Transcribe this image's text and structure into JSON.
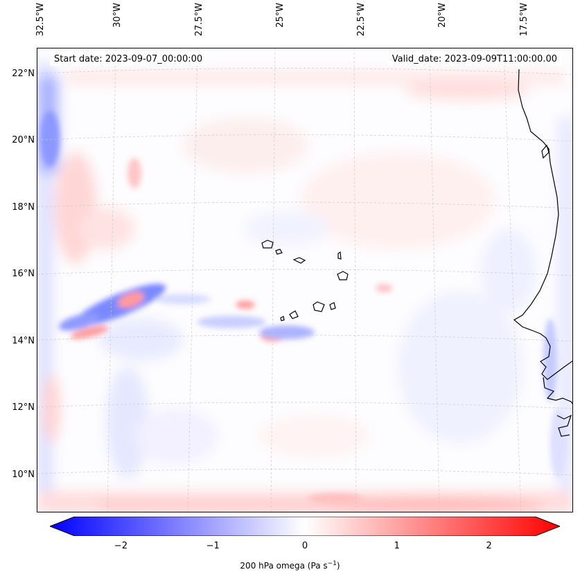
{
  "header": {
    "start_date": "Start date: 2023-09-07_00:00:00",
    "valid_date": "Valid_date: 2023-09-09T11:00:00.00"
  },
  "map": {
    "lon_labels": [
      "32.5°W",
      "30°W",
      "27.5°W",
      "25°W",
      "22.5°W",
      "20°W",
      "17.5°W"
    ],
    "lon_values": [
      -32.5,
      -30,
      -27.5,
      -25,
      -22.5,
      -20,
      -17.5
    ],
    "lat_labels": [
      "22°N",
      "20°N",
      "18°N",
      "16°N",
      "14°N",
      "12°N",
      "10°N"
    ],
    "lat_values": [
      22,
      20,
      18,
      16,
      14,
      12,
      10
    ],
    "lon_range": [
      -32.5,
      -16.0
    ],
    "lat_range": [
      8.9,
      22.8
    ],
    "gridlines": true,
    "colormap": [
      "#0000ff",
      "#ffffff",
      "#ff0000"
    ]
  },
  "colorbar": {
    "range": [
      -2.5,
      2.5
    ],
    "ticks": [
      -2,
      -1,
      0,
      1,
      2
    ],
    "tick_labels": [
      "−2",
      "−1",
      "0",
      "1",
      "2"
    ],
    "label": "200 hPa omega (Pa s",
    "label_exp": "−1",
    "label_end": ")",
    "extend": "both"
  }
}
